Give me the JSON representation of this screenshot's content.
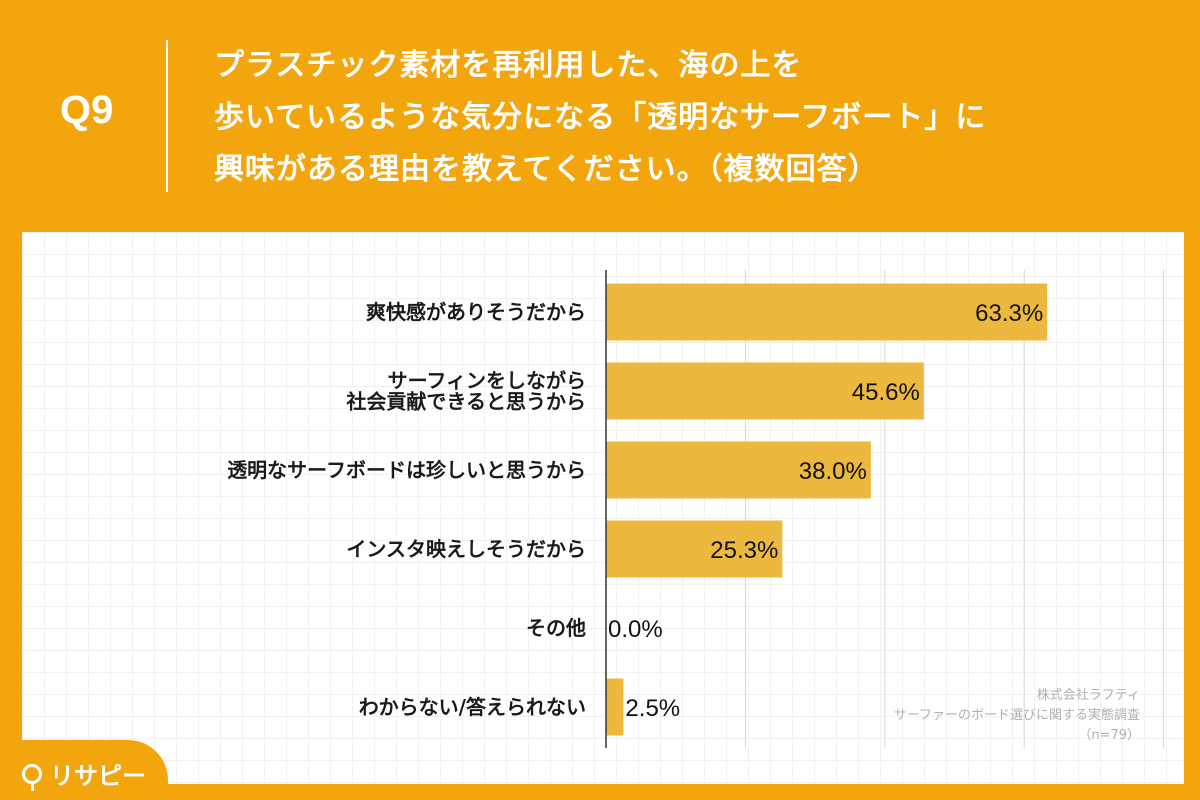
{
  "question": {
    "number": "Q9",
    "lines": [
      "プラスチック素材を再利用した、海の上を",
      "歩いているような気分になる「透明なサーフボート」に",
      "興味がある理由を教えてください。（複数回答）"
    ]
  },
  "chart_data": {
    "type": "bar",
    "orientation": "horizontal",
    "categories": [
      [
        "爽快感がありそうだから"
      ],
      [
        "サーフィンをしながら",
        "社会貢献できると思うから"
      ],
      [
        "透明なサーフボードは珍しいと思うから"
      ],
      [
        "インスタ映えしそうだから"
      ],
      [
        "その他"
      ],
      [
        "わからない/答えられない"
      ]
    ],
    "values": [
      63.3,
      45.6,
      38.0,
      25.3,
      0.0,
      2.5
    ],
    "value_labels": [
      "63.3%",
      "45.6%",
      "38.0%",
      "25.3%",
      "0.0%",
      "2.5%"
    ],
    "xlim": [
      0,
      100
    ],
    "bar_color": "#edb83e",
    "gridlines": true
  },
  "source": {
    "company": "株式会社ラフティ",
    "survey": "サーファーのボード選びに関する実態調査",
    "n": "（n=79）"
  },
  "brand": {
    "name": "リサピー"
  },
  "colors": {
    "background": "#f3a50d",
    "bar": "#edb83e",
    "panel": "#ffffff"
  }
}
